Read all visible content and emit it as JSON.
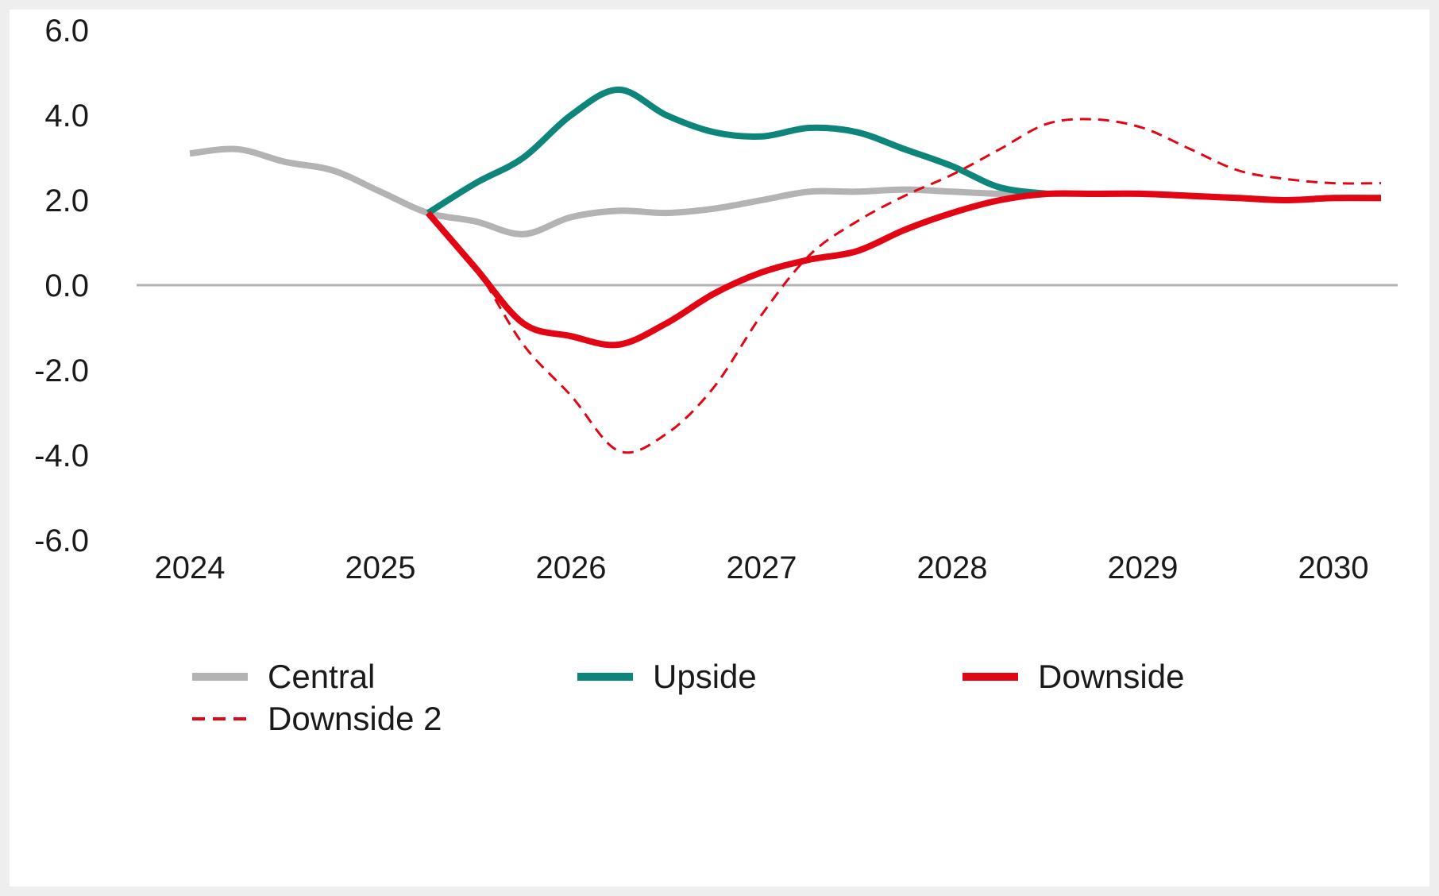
{
  "chart_data": {
    "type": "line",
    "title": "",
    "xlabel": "",
    "ylabel": "",
    "x_ticks": [
      "2024",
      "2025",
      "2026",
      "2027",
      "2028",
      "2029",
      "2030"
    ],
    "y_ticks": [
      "6.0",
      "4.0",
      "2.0",
      "0.0",
      "-2.0",
      "-4.0",
      "-6.0"
    ],
    "ylim": [
      -6,
      6
    ],
    "xlim": [
      "2024",
      "2030"
    ],
    "grid": false,
    "zero_line": true,
    "legend_position": "bottom",
    "series": [
      {
        "name": "Central",
        "color": "#b3b3b3",
        "style": "solid",
        "points": [
          [
            0.0,
            3.1
          ],
          [
            0.25,
            3.2
          ],
          [
            0.5,
            2.9
          ],
          [
            0.75,
            2.7
          ],
          [
            1.0,
            2.2
          ],
          [
            1.25,
            1.7
          ],
          [
            1.5,
            1.5
          ],
          [
            1.75,
            1.2
          ],
          [
            2.0,
            1.6
          ],
          [
            2.25,
            1.75
          ],
          [
            2.5,
            1.7
          ],
          [
            2.75,
            1.8
          ],
          [
            3.0,
            2.0
          ],
          [
            3.25,
            2.2
          ],
          [
            3.5,
            2.2
          ],
          [
            3.75,
            2.25
          ],
          [
            4.0,
            2.2
          ],
          [
            4.25,
            2.15
          ],
          [
            4.5,
            2.15
          ],
          [
            4.75,
            2.15
          ],
          [
            5.0,
            2.15
          ],
          [
            5.25,
            2.1
          ],
          [
            5.5,
            2.05
          ],
          [
            5.75,
            2.0
          ],
          [
            6.0,
            2.05
          ],
          [
            6.25,
            2.05
          ]
        ]
      },
      {
        "name": "Upside",
        "color": "#0e857a",
        "style": "solid",
        "points": [
          [
            1.25,
            1.7
          ],
          [
            1.5,
            2.4
          ],
          [
            1.75,
            3.0
          ],
          [
            2.0,
            4.0
          ],
          [
            2.25,
            4.6
          ],
          [
            2.5,
            4.0
          ],
          [
            2.75,
            3.6
          ],
          [
            3.0,
            3.5
          ],
          [
            3.25,
            3.7
          ],
          [
            3.5,
            3.6
          ],
          [
            3.75,
            3.2
          ],
          [
            4.0,
            2.8
          ],
          [
            4.25,
            2.3
          ],
          [
            4.5,
            2.15
          ]
        ]
      },
      {
        "name": "Downside",
        "color": "#e20513",
        "style": "solid",
        "points": [
          [
            1.25,
            1.7
          ],
          [
            1.5,
            0.4
          ],
          [
            1.75,
            -0.9
          ],
          [
            2.0,
            -1.2
          ],
          [
            2.25,
            -1.4
          ],
          [
            2.5,
            -0.9
          ],
          [
            2.75,
            -0.2
          ],
          [
            3.0,
            0.3
          ],
          [
            3.25,
            0.6
          ],
          [
            3.5,
            0.8
          ],
          [
            3.75,
            1.3
          ],
          [
            4.0,
            1.7
          ],
          [
            4.25,
            2.0
          ],
          [
            4.5,
            2.15
          ],
          [
            4.75,
            2.15
          ],
          [
            5.0,
            2.15
          ],
          [
            5.25,
            2.1
          ],
          [
            5.5,
            2.05
          ],
          [
            5.75,
            2.0
          ],
          [
            6.0,
            2.05
          ],
          [
            6.25,
            2.05
          ]
        ]
      },
      {
        "name": "Downside 2",
        "color": "#e20513",
        "style": "dashed",
        "points": [
          [
            1.25,
            1.7
          ],
          [
            1.5,
            0.4
          ],
          [
            1.75,
            -1.4
          ],
          [
            2.0,
            -2.6
          ],
          [
            2.25,
            -3.9
          ],
          [
            2.5,
            -3.5
          ],
          [
            2.75,
            -2.4
          ],
          [
            3.0,
            -0.7
          ],
          [
            3.25,
            0.7
          ],
          [
            3.5,
            1.5
          ],
          [
            3.75,
            2.1
          ],
          [
            4.0,
            2.6
          ],
          [
            4.25,
            3.2
          ],
          [
            4.5,
            3.8
          ],
          [
            4.75,
            3.9
          ],
          [
            5.0,
            3.7
          ],
          [
            5.25,
            3.2
          ],
          [
            5.5,
            2.7
          ],
          [
            5.75,
            2.5
          ],
          [
            6.0,
            2.4
          ],
          [
            6.25,
            2.4
          ]
        ]
      }
    ]
  }
}
